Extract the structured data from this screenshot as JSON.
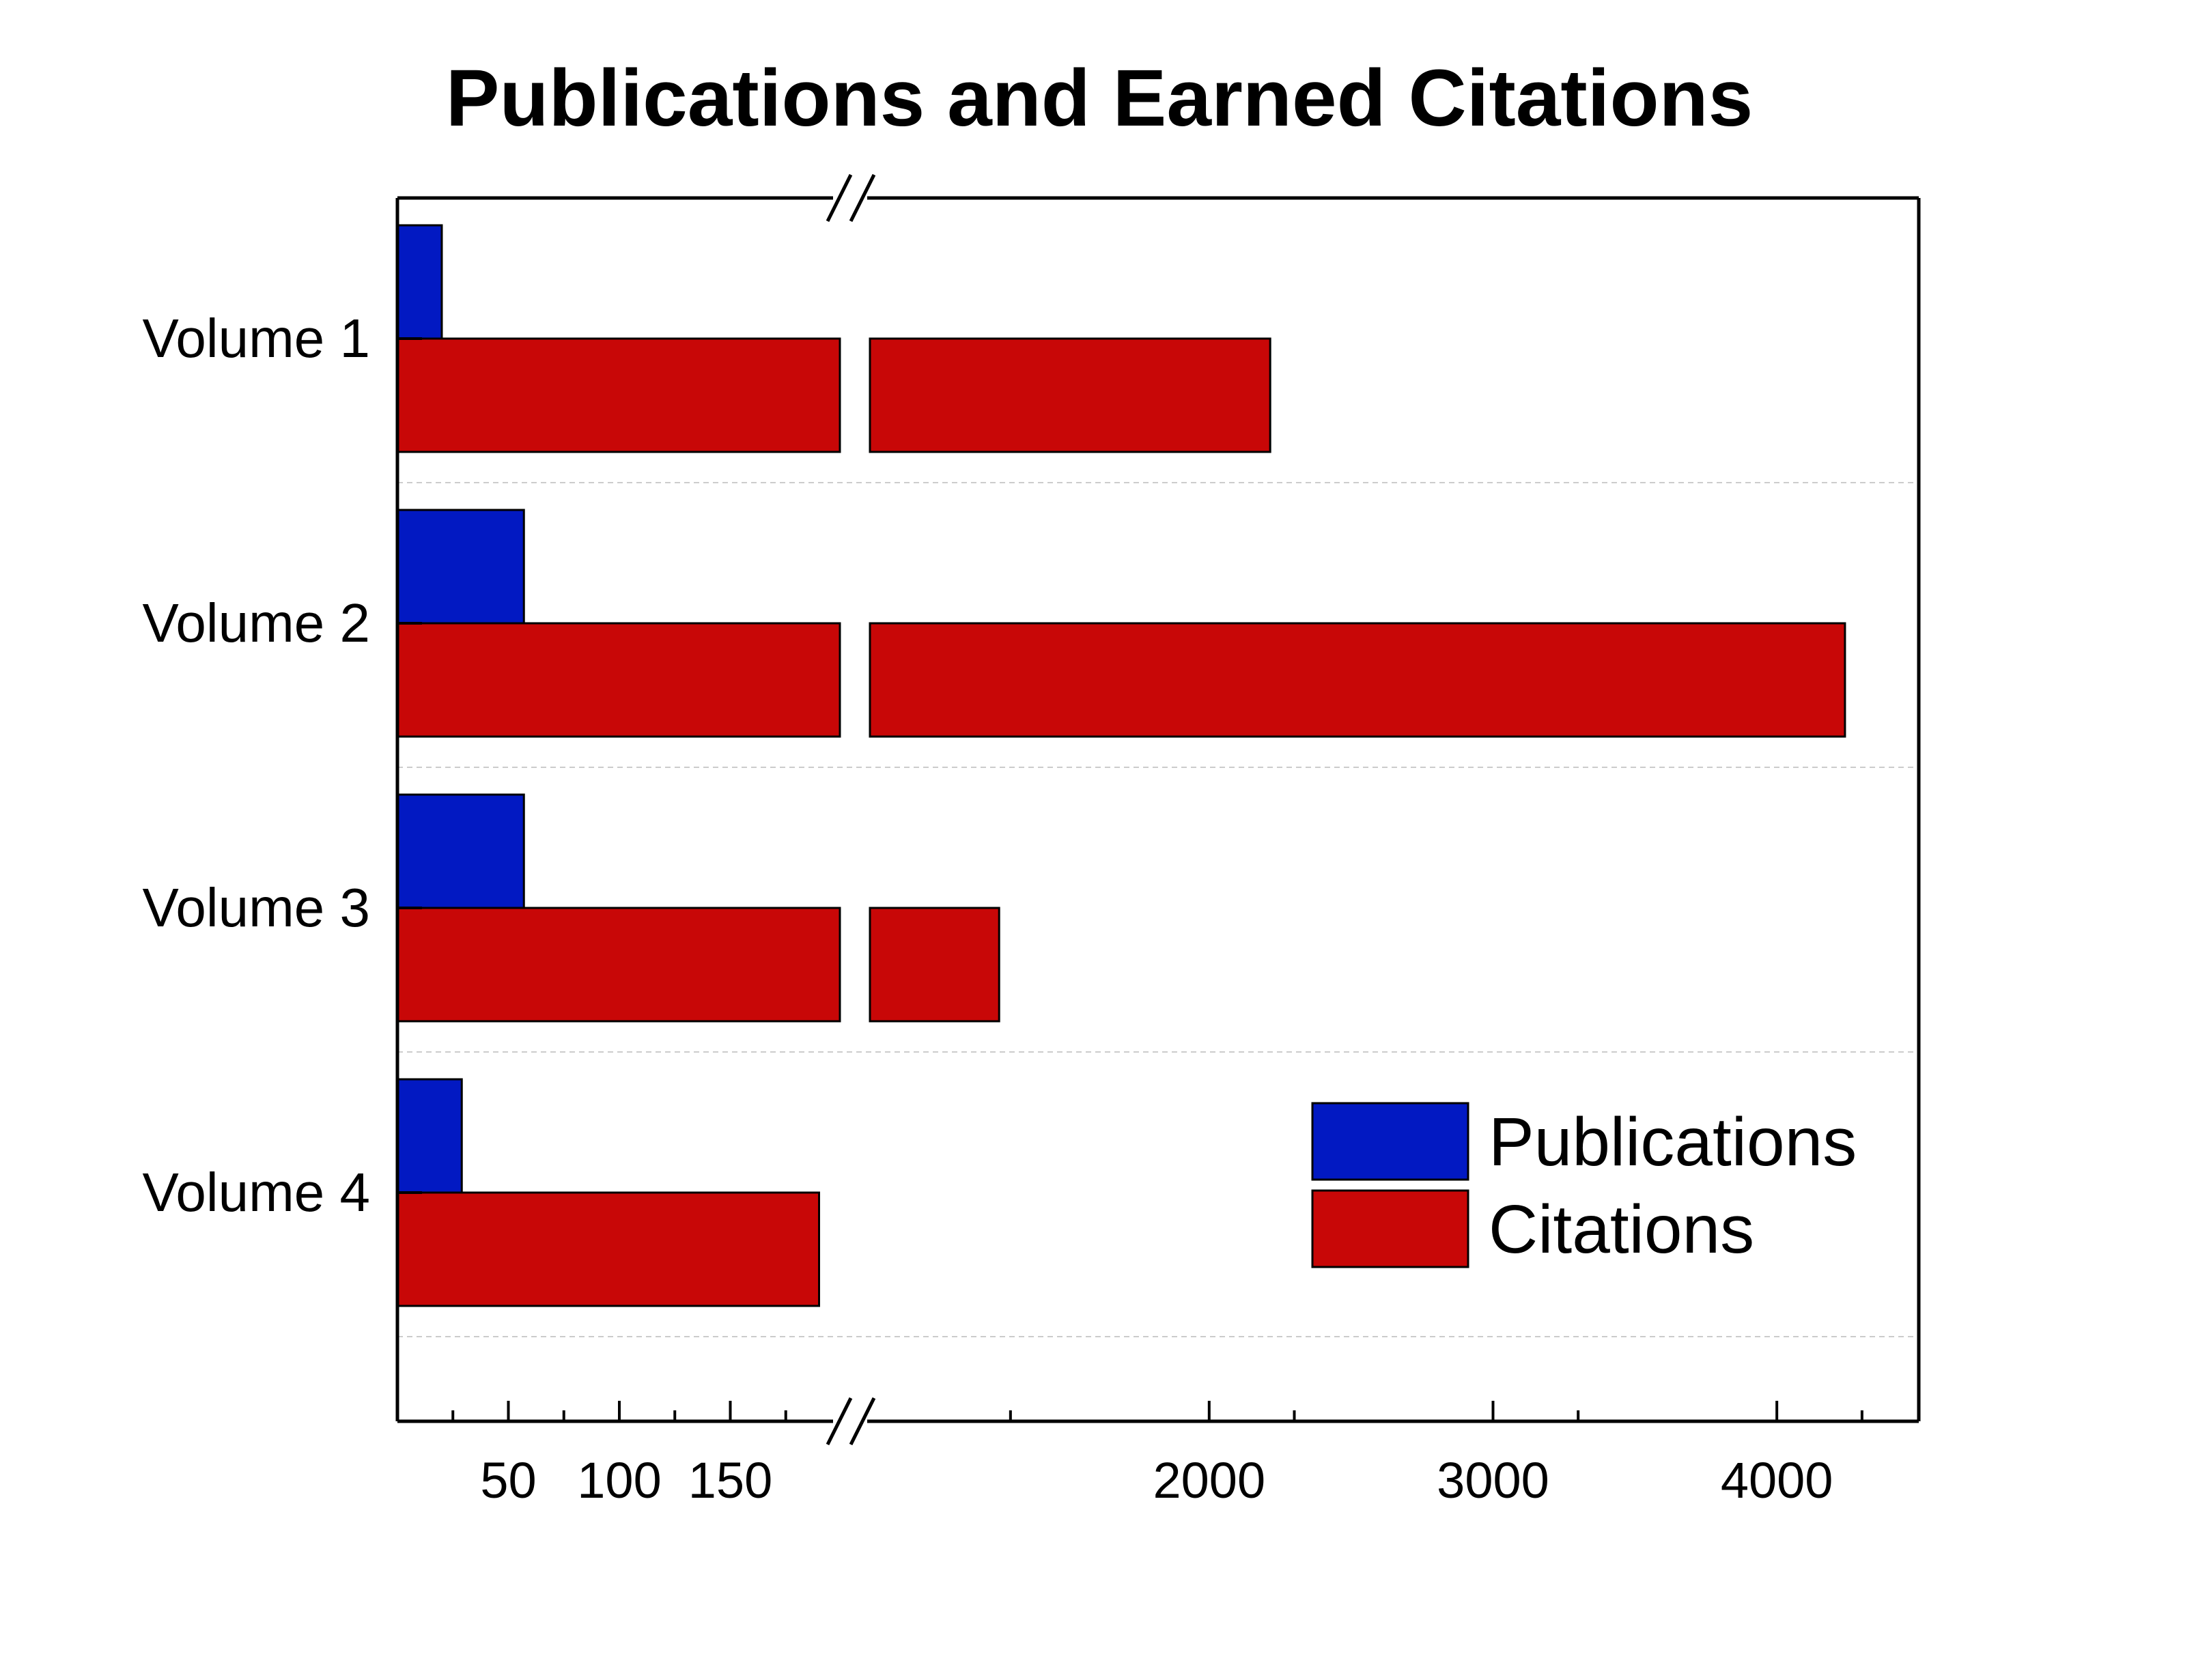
{
  "chart_data": {
    "type": "bar",
    "orientation": "horizontal",
    "title": "Publications and Earned Citations",
    "xlabel": "",
    "ylabel": "",
    "categories": [
      "Volume 1",
      "Volume 2",
      "Volume 3",
      "Volume 4"
    ],
    "series": [
      {
        "name": "Publications",
        "color": "#0219c2",
        "values": [
          20,
          57,
          57,
          29
        ]
      },
      {
        "name": "Citations",
        "color": "#c80707",
        "values": [
          2215,
          4240,
          1260,
          190
        ]
      }
    ],
    "x_axis": {
      "scale": "broken",
      "segments": [
        {
          "range": [
            0,
            200
          ],
          "ticks": [
            50,
            100,
            150
          ],
          "tick_labels": [
            "50",
            "100",
            "150"
          ]
        },
        {
          "range": [
            800,
            4500
          ],
          "ticks": [
            2000,
            3000,
            4000
          ],
          "tick_labels": [
            "2000",
            "3000",
            "4000"
          ]
        }
      ],
      "break_between": [
        200,
        800
      ]
    },
    "grid": "horizontal dashed between categories",
    "legend": {
      "position": "bottom-right",
      "entries": [
        "Publications",
        "Citations"
      ]
    }
  }
}
